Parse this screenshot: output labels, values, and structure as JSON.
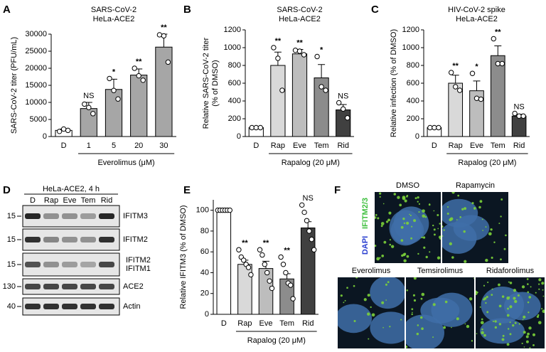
{
  "chart_data": [
    {
      "type": "bar",
      "panel": "A",
      "title": "SARS-CoV-2",
      "subtitle": "HeLa-ACE2",
      "ylabel": "SARS-CoV-2 titer (PFU/mL)",
      "xlabel": "Everolimus (μM)",
      "categories": [
        "D",
        "1",
        "5",
        "20",
        "30"
      ],
      "values": [
        1800,
        8200,
        13800,
        18000,
        26200
      ],
      "errors": [
        400,
        1800,
        3000,
        1800,
        3800
      ],
      "points": [
        [
          1500,
          2200,
          1800
        ],
        [
          9500,
          8500,
          6700
        ],
        [
          17000,
          13500,
          11000
        ],
        [
          20000,
          17800,
          16500
        ],
        [
          29800,
          29500,
          21800
        ]
      ],
      "significance": [
        null,
        "NS",
        "*",
        "**",
        "**"
      ],
      "colors": [
        "#ffffff",
        "#a6a6a6",
        "#a6a6a6",
        "#a6a6a6",
        "#a6a6a6"
      ],
      "ylim": [
        0,
        30000
      ],
      "yticks": [
        0,
        5000,
        10000,
        15000,
        20000,
        25000,
        30000
      ]
    },
    {
      "type": "bar",
      "panel": "B",
      "title": "SARS-CoV-2",
      "subtitle": "HeLa-ACE2",
      "ylabel": [
        "Relative SARS-CoV-2 titer",
        "(% of DMSO)"
      ],
      "xlabel": "Rapalog (20 μM)",
      "categories": [
        "D",
        "Rap",
        "Eve",
        "Tem",
        "Rid"
      ],
      "values": [
        100,
        800,
        930,
        660,
        300
      ],
      "errors": [
        0,
        150,
        50,
        150,
        60
      ],
      "points": [
        [
          100,
          100,
          100
        ],
        [
          1000,
          880,
          520
        ],
        [
          970,
          960,
          920
        ],
        [
          900,
          560,
          520
        ],
        [
          380,
          310,
          210
        ]
      ],
      "significance": [
        null,
        "**",
        "**",
        "*",
        "NS"
      ],
      "colors": [
        "#ffffff",
        "#d9d9d9",
        "#bdbdbd",
        "#8c8c8c",
        "#404040"
      ],
      "ylim": [
        0,
        1200
      ],
      "yticks": [
        0,
        200,
        400,
        600,
        800,
        1000,
        1200
      ]
    },
    {
      "type": "bar",
      "panel": "C",
      "title": "HIV-CoV-2 spike",
      "subtitle": "HeLa-ACE2",
      "ylabel": "Relative infection (% of DMSO)",
      "xlabel": "Rapalog (20 μM)",
      "categories": [
        "D",
        "Rap",
        "Eve",
        "Tem",
        "Rid"
      ],
      "values": [
        100,
        600,
        515,
        910,
        230
      ],
      "errors": [
        0,
        90,
        110,
        110,
        20
      ],
      "points": [
        [
          100,
          100,
          100
        ],
        [
          720,
          560,
          520
        ],
        [
          710,
          430,
          420
        ],
        [
          1100,
          820,
          820
        ],
        [
          260,
          230,
          230
        ]
      ],
      "significance": [
        null,
        "**",
        "*",
        "**",
        "NS"
      ],
      "colors": [
        "#ffffff",
        "#d9d9d9",
        "#bdbdbd",
        "#8c8c8c",
        "#404040"
      ],
      "ylim": [
        0,
        1200
      ],
      "yticks": [
        0,
        200,
        400,
        600,
        800,
        1000,
        1200
      ]
    },
    {
      "type": "bar",
      "panel": "E",
      "ylabel": "Relative IFITM3 (% of DMSO)",
      "xlabel": "Rapalog (20 μM)",
      "categories": [
        "D",
        "Rap",
        "Eve",
        "Tem",
        "Rid"
      ],
      "values": [
        100,
        48,
        44,
        34,
        83
      ],
      "errors": [
        0,
        4,
        7,
        5,
        6
      ],
      "points": [
        [
          100,
          100,
          100,
          100,
          100,
          100
        ],
        [
          62,
          55,
          52,
          48,
          45,
          38
        ],
        [
          62,
          57,
          48,
          40,
          32,
          25
        ],
        [
          55,
          48,
          40,
          30,
          28,
          15
        ],
        [
          105,
          98,
          90,
          80,
          72,
          62
        ]
      ],
      "significance": [
        null,
        "**",
        "**",
        "**",
        "NS"
      ],
      "colors": [
        "#ffffff",
        "#d9d9d9",
        "#bdbdbd",
        "#8c8c8c",
        "#404040"
      ],
      "ylim": [
        0,
        110
      ],
      "yticks": [
        0,
        20,
        40,
        60,
        80,
        100
      ]
    }
  ],
  "blot": {
    "panel": "D",
    "header": "HeLa-ACE2, 4 h",
    "lanes": [
      "D",
      "Rap",
      "Eve",
      "Tem",
      "Rid"
    ],
    "rows": [
      {
        "marker": "15",
        "labels": [
          "IFITM3"
        ]
      },
      {
        "marker": "15",
        "labels": [
          "IFITM2"
        ]
      },
      {
        "marker": "15",
        "labels": [
          "IFITM2",
          "IFITM1"
        ]
      },
      {
        "marker": "130",
        "labels": [
          "ACE2"
        ]
      },
      {
        "marker": "40",
        "labels": [
          "Actin"
        ]
      }
    ]
  },
  "images": {
    "panel": "F",
    "stains": [
      "IFITM2/3",
      "DAPI"
    ],
    "tiles": [
      "DMSO",
      "Rapamycin",
      "Everolimus",
      "Temsirolimus",
      "Ridaforolimus"
    ]
  }
}
